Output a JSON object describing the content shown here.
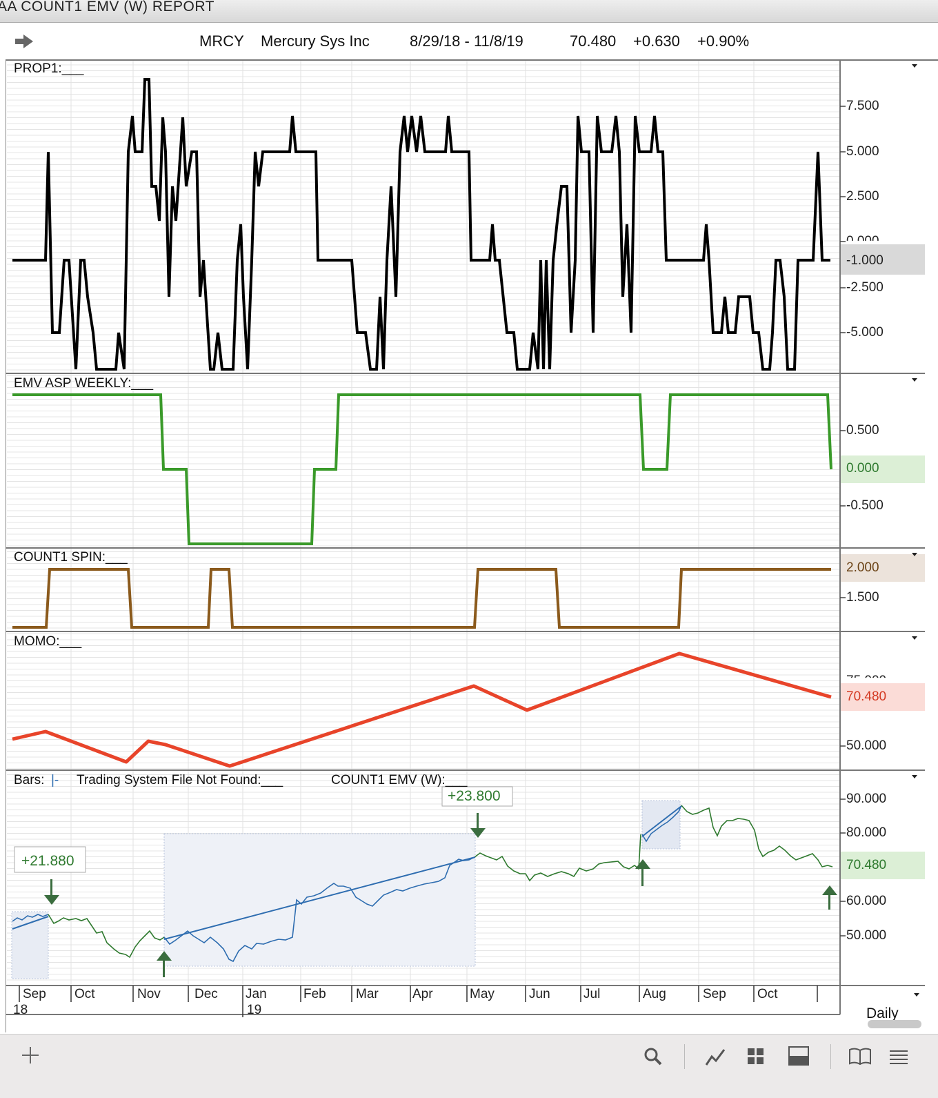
{
  "window": {
    "title": "AA COUNT1 EMV (W)  REPORT"
  },
  "header": {
    "symbol": "MRCY",
    "company": "Mercury Sys Inc",
    "date_range": "8/29/18 - 11/8/19",
    "last": "70.480",
    "change": "+0.630",
    "change_pct": "+0.90%"
  },
  "panels": {
    "prop1": {
      "label": "PROP1:___",
      "ticks": [
        "7.500",
        "5.000",
        "2.500",
        "0.000",
        "-2.500",
        "-5.000"
      ],
      "current": "-1.000"
    },
    "emv": {
      "label": "EMV ASP WEEKLY:___",
      "ticks": [
        "0.500",
        "-0.500"
      ],
      "current": "0.000",
      "color": "#3a9a2a"
    },
    "count1": {
      "label": "COUNT1 SPIN:___",
      "ticks": [
        "1.500"
      ],
      "current": "2.000",
      "color": "#8b5a1c"
    },
    "momo": {
      "label": "MOMO:___",
      "ticks": [
        "75.000",
        "50.000"
      ],
      "current": "70.480",
      "color": "#e8442a"
    },
    "price": {
      "label_bars": "Bars:",
      "label_bars_suffix": "|-",
      "label_tsf": "Trading System File Not Found:___",
      "label_count1": "COUNT1 EMV (W):___",
      "ticks": [
        "90.000",
        "80.000",
        "60.000",
        "50.000"
      ],
      "current": "70.480",
      "trade_labels": [
        "+21.880",
        "+23.800"
      ]
    }
  },
  "time_axis": {
    "months": [
      "Sep",
      "Oct",
      "Nov",
      "Dec",
      "Jan",
      "Feb",
      "Mar",
      "Apr",
      "May",
      "Jun",
      "Jul",
      "Aug",
      "Sep",
      "Oct"
    ],
    "years": [
      "18",
      "19"
    ],
    "interval": "Daily"
  },
  "colors": {
    "accent_green": "#3a7d3a",
    "price_blue": "#2e6db0",
    "line_black": "#000000"
  }
}
